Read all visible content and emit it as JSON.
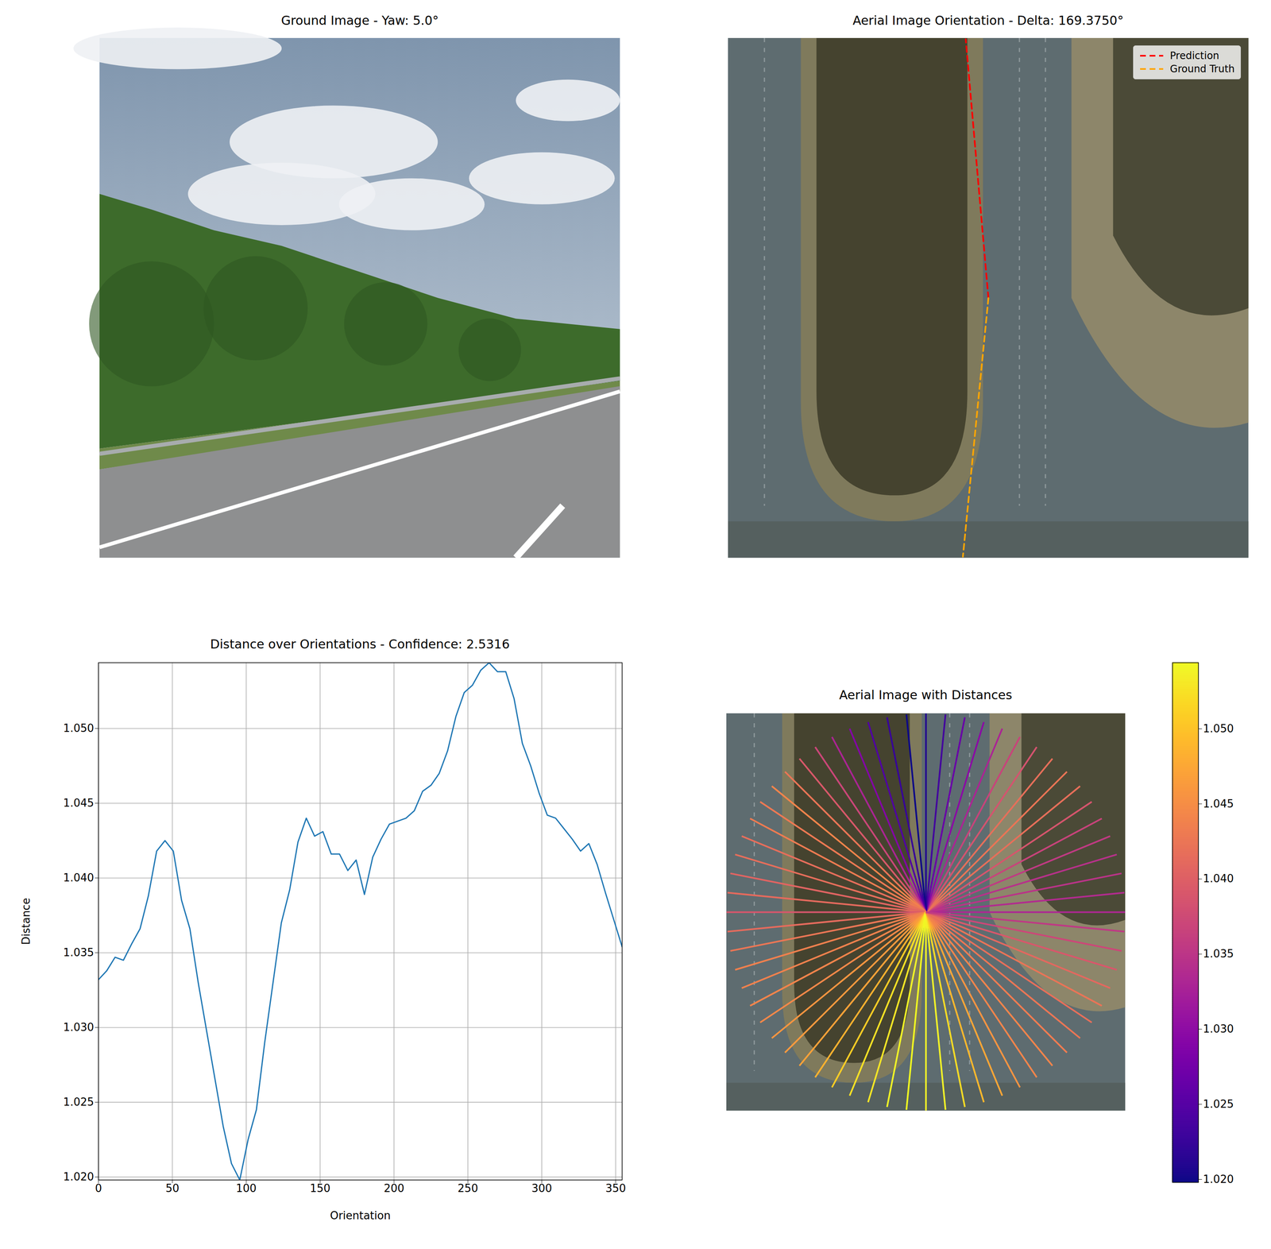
{
  "chart_data": [
    {
      "type": "image",
      "title": "Ground Image - Yaw: 5.0°",
      "tick_labels": false
    },
    {
      "type": "overlay",
      "title": "Aerial Image Orientation - Delta: 169.3750°",
      "tick_labels": false,
      "legend": "upper right",
      "line_style": "dashed",
      "series": [
        {
          "name": "Prediction",
          "color": "#ff0000",
          "angle": 355.0
        },
        {
          "name": "Ground Truth",
          "color": "#ffa500",
          "angle": 185.625
        }
      ]
    },
    {
      "type": "line",
      "title": "Distance over Orientations - Confidence: 2.5316",
      "x_label": "Orientation",
      "y_label": "Distance",
      "color": "#1f77b4",
      "grid": true,
      "x": [
        0,
        5.625,
        11.25,
        16.875,
        22.5,
        28.125,
        33.75,
        39.375,
        45,
        50.625,
        56.25,
        61.875,
        67.5,
        73.125,
        78.75,
        84.375,
        90,
        95.625,
        101.25,
        106.875,
        112.5,
        118.125,
        123.75,
        129.375,
        135,
        140.625,
        146.25,
        151.875,
        157.5,
        163.125,
        168.75,
        174.375,
        180,
        185.625,
        191.25,
        196.875,
        202.5,
        208.125,
        213.75,
        219.375,
        225,
        230.625,
        236.25,
        241.875,
        247.5,
        253.125,
        258.75,
        264.375,
        270,
        275.625,
        281.25,
        286.875,
        292.5,
        298.125,
        303.75,
        309.375,
        315,
        320.625,
        326.25,
        331.875,
        337.5,
        343.125,
        348.75,
        354.375
      ],
      "values": [
        1.0332,
        1.0338,
        1.0347,
        1.0345,
        1.0356,
        1.0366,
        1.0388,
        1.0418,
        1.0425,
        1.0418,
        1.0385,
        1.0366,
        1.033,
        1.0298,
        1.0266,
        1.0234,
        1.0209,
        1.0198,
        1.0225,
        1.0245,
        1.029,
        1.033,
        1.037,
        1.0392,
        1.0424,
        1.044,
        1.0428,
        1.0431,
        1.0416,
        1.0416,
        1.0405,
        1.0412,
        1.0389,
        1.0414,
        1.0426,
        1.0436,
        1.0438,
        1.044,
        1.0445,
        1.0458,
        1.0462,
        1.047,
        1.0485,
        1.0508,
        1.0524,
        1.0529,
        1.0539,
        1.0544,
        1.0538,
        1.0538,
        1.052,
        1.049,
        1.0475,
        1.0457,
        1.0442,
        1.044,
        1.0433,
        1.0426,
        1.0418,
        1.0423,
        1.0409,
        1.039,
        1.0372,
        1.0354
      ],
      "xlim": [
        0,
        354.375
      ],
      "ylim": [
        1.0198,
        1.0544
      ],
      "xticks": [
        0,
        50,
        100,
        150,
        200,
        250,
        300,
        350
      ],
      "yticks": [
        {
          "value": 1.02,
          "label": "1.020"
        },
        {
          "value": 1.025,
          "label": "1.025"
        },
        {
          "value": 1.03,
          "label": "1.030"
        },
        {
          "value": 1.035,
          "label": "1.035"
        },
        {
          "value": 1.04,
          "label": "1.040"
        },
        {
          "value": 1.045,
          "label": "1.045"
        },
        {
          "value": 1.05,
          "label": "1.050"
        }
      ]
    },
    {
      "type": "rays",
      "title": "Aerial Image with Distances",
      "tick_labels": false,
      "color": "plasma",
      "x": [
        0,
        5.625,
        11.25,
        16.875,
        22.5,
        28.125,
        33.75,
        39.375,
        45,
        50.625,
        56.25,
        61.875,
        67.5,
        73.125,
        78.75,
        84.375,
        90,
        95.625,
        101.25,
        106.875,
        112.5,
        118.125,
        123.75,
        129.375,
        135,
        140.625,
        146.25,
        151.875,
        157.5,
        163.125,
        168.75,
        174.375,
        180,
        185.625,
        191.25,
        196.875,
        202.5,
        208.125,
        213.75,
        219.375,
        225,
        230.625,
        236.25,
        241.875,
        247.5,
        253.125,
        258.75,
        264.375,
        270,
        275.625,
        281.25,
        286.875,
        292.5,
        298.125,
        303.75,
        309.375,
        315,
        320.625,
        326.25,
        331.875,
        337.5,
        343.125,
        348.75,
        354.375
      ],
      "values": [
        1.0332,
        1.0338,
        1.0347,
        1.0345,
        1.0356,
        1.0366,
        1.0388,
        1.0418,
        1.0425,
        1.0418,
        1.0385,
        1.0366,
        1.033,
        1.0298,
        1.0266,
        1.0234,
        1.0209,
        1.0198,
        1.0225,
        1.0245,
        1.029,
        1.033,
        1.037,
        1.0392,
        1.0424,
        1.044,
        1.0428,
        1.0431,
        1.0416,
        1.0416,
        1.0405,
        1.0412,
        1.0389,
        1.0414,
        1.0426,
        1.0436,
        1.0438,
        1.044,
        1.0445,
        1.0458,
        1.0462,
        1.047,
        1.0485,
        1.0508,
        1.0524,
        1.0529,
        1.0539,
        1.0544,
        1.0538,
        1.0538,
        1.052,
        1.049,
        1.0475,
        1.0457,
        1.0442,
        1.044,
        1.0433,
        1.0426,
        1.0418,
        1.0423,
        1.0409,
        1.039,
        1.0372,
        1.0354
      ],
      "colorbar_range": [
        1.0198,
        1.0544
      ],
      "colorbar_ticks": [
        {
          "value": 1.02,
          "label": "1.020"
        },
        {
          "value": 1.025,
          "label": "1.025"
        },
        {
          "value": 1.03,
          "label": "1.030"
        },
        {
          "value": 1.035,
          "label": "1.035"
        },
        {
          "value": 1.04,
          "label": "1.040"
        },
        {
          "value": 1.045,
          "label": "1.045"
        },
        {
          "value": 1.05,
          "label": "1.050"
        }
      ]
    }
  ]
}
